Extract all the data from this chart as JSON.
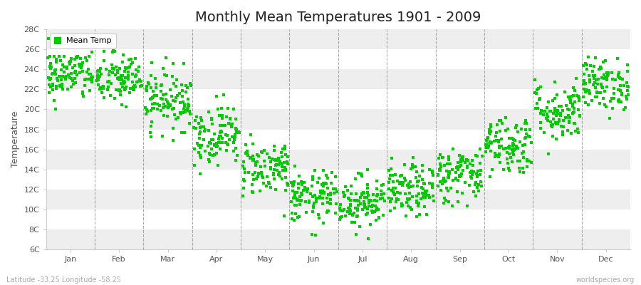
{
  "title": "Monthly Mean Temperatures 1901 - 2009",
  "ylabel": "Temperature",
  "bottom_left": "Latitude -33.25 Longitude -58.25",
  "bottom_right": "worldspecies.org",
  "legend_label": "Mean Temp",
  "marker_color": "#00cc00",
  "ylim": [
    6,
    28
  ],
  "yticks": [
    6,
    8,
    10,
    12,
    14,
    16,
    18,
    20,
    22,
    24,
    26,
    28
  ],
  "ytick_labels": [
    "6C",
    "8C",
    "10C",
    "12C",
    "14C",
    "16C",
    "18C",
    "20C",
    "22C",
    "24C",
    "26C",
    "28C"
  ],
  "months": [
    "Jan",
    "Feb",
    "Mar",
    "Apr",
    "May",
    "Jun",
    "Jul",
    "Aug",
    "Sep",
    "Oct",
    "Nov",
    "Dec"
  ],
  "monthly_means": [
    23.5,
    23.0,
    21.0,
    17.5,
    14.2,
    11.2,
    10.8,
    11.8,
    13.5,
    16.5,
    19.8,
    22.5
  ],
  "monthly_stds": [
    1.3,
    1.3,
    1.5,
    1.5,
    1.4,
    1.3,
    1.3,
    1.3,
    1.4,
    1.5,
    1.5,
    1.3
  ],
  "n_years": 109,
  "random_seed": 42,
  "bg_color": "#ffffff",
  "plot_bg_color": "#ffffff",
  "stripe_color_odd": "#eeeeee",
  "stripe_color_even": "#ffffff",
  "grid_color": "#888888",
  "marker_size": 6,
  "spine_color": "#cccccc",
  "tick_label_color": "#555555",
  "title_fontsize": 14,
  "axis_fontsize": 9,
  "tick_fontsize": 8
}
